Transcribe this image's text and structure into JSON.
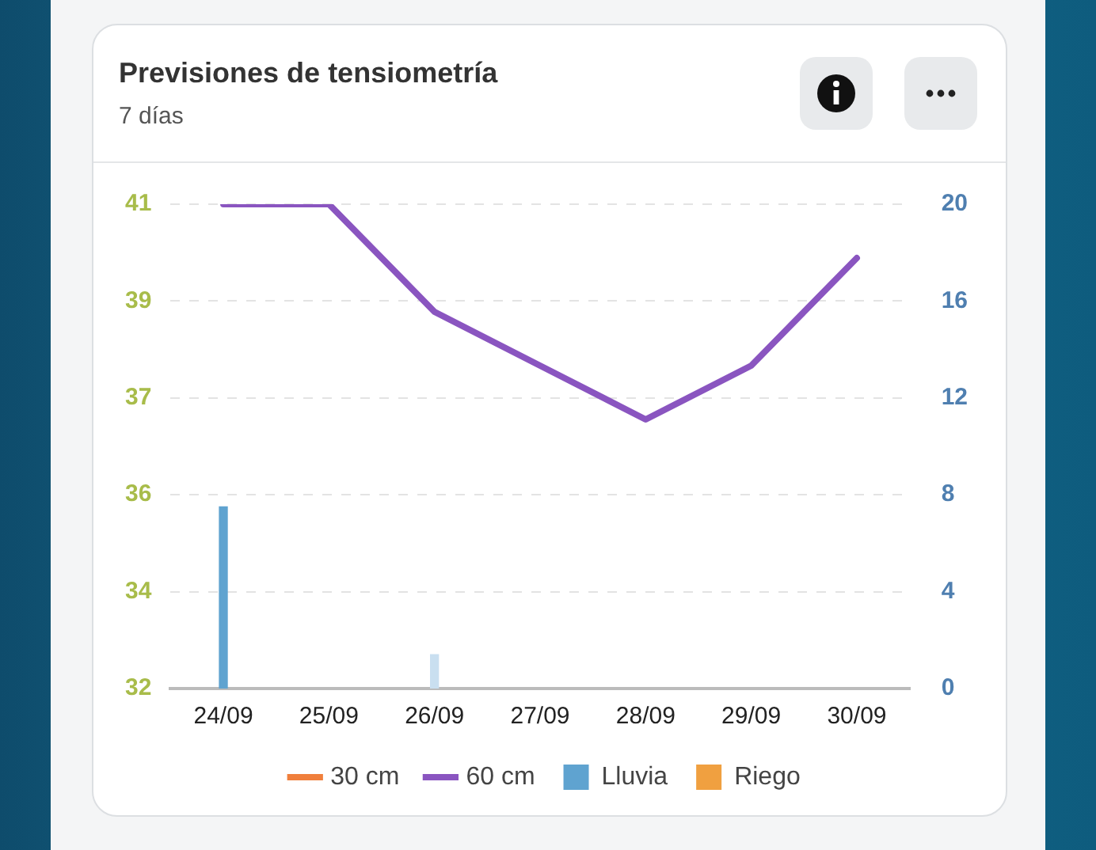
{
  "chart_data": {
    "type": "line",
    "title": "Previsiones de tensiometría",
    "subtitle": "7 días",
    "categories": [
      "24/09",
      "25/09",
      "26/09",
      "27/09",
      "28/09",
      "29/09",
      "30/09"
    ],
    "series": [
      {
        "name": "30 cm",
        "color": "#f07f3c",
        "values": [
          null,
          null,
          null,
          null,
          null,
          null,
          null
        ]
      },
      {
        "name": "60 cm",
        "color": "#8a55c0",
        "values": [
          41,
          41,
          39.0,
          38.0,
          37.0,
          38.0,
          40.0
        ]
      },
      {
        "name": "Lluvia",
        "type": "bar",
        "axis": "y2",
        "color": "#5fa3d0",
        "colors": [
          "#5fa3d0",
          null,
          "#c9dff0",
          null,
          null,
          null,
          null
        ],
        "values": [
          7.5,
          null,
          1.4,
          null,
          null,
          null,
          null
        ]
      },
      {
        "name": "Riego",
        "type": "bar",
        "axis": "y2",
        "color": "#f0a040",
        "values": [
          null,
          null,
          null,
          null,
          null,
          null,
          null
        ]
      }
    ],
    "ylim": [
      32,
      41
    ],
    "yticks": [
      32,
      {
        "value": 33.8,
        "label": "34"
      },
      {
        "value": 35.6,
        "label": "36"
      },
      {
        "value": 37.4,
        "label": "37"
      },
      {
        "value": 39.2,
        "label": "39"
      },
      41
    ],
    "y2lim": [
      0,
      20
    ],
    "y2ticks": [
      0,
      4,
      8,
      12,
      16,
      20
    ],
    "grid": "y",
    "legend": "bottom",
    "marker": "none",
    "line_style": "solid"
  }
}
